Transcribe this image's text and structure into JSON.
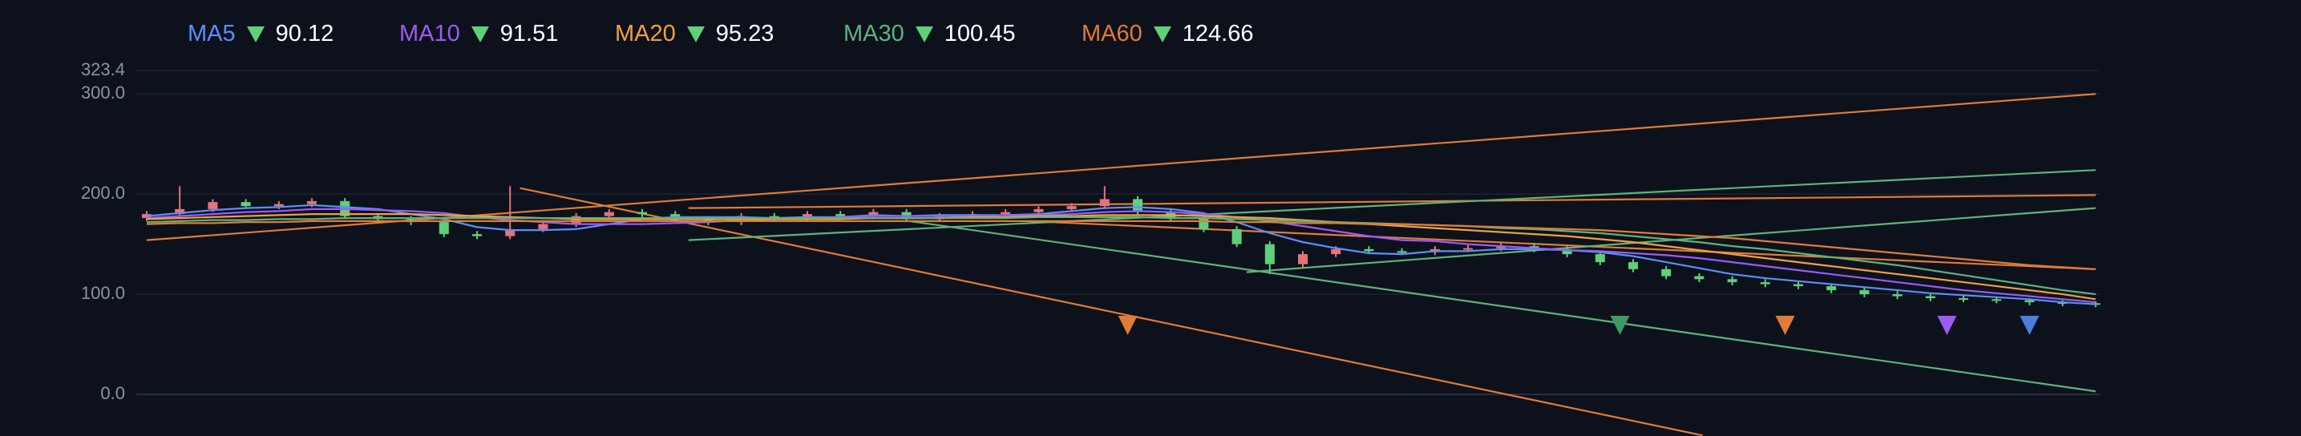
{
  "chart_data": {
    "type": "candlestick",
    "ylim": [
      0,
      323.4
    ],
    "yticks": [
      {
        "value": 0,
        "label": "0.0"
      },
      {
        "value": 100,
        "label": "100.0"
      },
      {
        "value": 200,
        "label": "200.0"
      },
      {
        "value": 300,
        "label": "300.0"
      },
      {
        "value": 323.4,
        "label": "323.4"
      }
    ],
    "grid": true,
    "up_color": "#e8727a",
    "down_color": "#5fd07a",
    "open": [
      176,
      180,
      185,
      192,
      188,
      190,
      193,
      178,
      175,
      172,
      160,
      158,
      165,
      170,
      178,
      182,
      180,
      175,
      172,
      178,
      176,
      180,
      178,
      182,
      175,
      178,
      180,
      182,
      185,
      188,
      195,
      182,
      176,
      165,
      150,
      130,
      140,
      145,
      143,
      142,
      145,
      146,
      148,
      145,
      140,
      132,
      125,
      118,
      115,
      112,
      110,
      108,
      104,
      100,
      98,
      96,
      95,
      94,
      92,
      91
    ],
    "high": [
      183,
      208,
      195,
      195,
      193,
      196,
      196,
      181,
      178,
      175,
      163,
      208,
      173,
      181,
      185,
      185,
      183,
      178,
      181,
      181,
      183,
      183,
      185,
      185,
      181,
      183,
      185,
      188,
      191,
      208,
      198,
      185,
      179,
      168,
      153,
      143,
      148,
      148,
      146,
      148,
      149,
      151,
      151,
      148,
      143,
      135,
      128,
      121,
      118,
      115,
      113,
      111,
      107,
      103,
      101,
      99,
      97,
      96,
      94,
      93
    ],
    "low": [
      173,
      177,
      182,
      185,
      185,
      187,
      175,
      172,
      169,
      157,
      155,
      155,
      162,
      167,
      175,
      177,
      172,
      169,
      169,
      173,
      173,
      175,
      175,
      172,
      172,
      175,
      177,
      179,
      182,
      185,
      179,
      173,
      162,
      147,
      120,
      127,
      137,
      140,
      139,
      139,
      142,
      143,
      142,
      137,
      129,
      122,
      115,
      112,
      109,
      107,
      105,
      101,
      97,
      95,
      93,
      92,
      91,
      89,
      88,
      87
    ],
    "close": [
      180,
      185,
      192,
      188,
      190,
      193,
      178,
      175,
      172,
      160,
      158,
      165,
      170,
      178,
      182,
      180,
      175,
      172,
      178,
      176,
      180,
      178,
      182,
      175,
      178,
      180,
      182,
      185,
      188,
      195,
      182,
      176,
      165,
      150,
      130,
      140,
      145,
      143,
      142,
      145,
      146,
      148,
      145,
      140,
      132,
      125,
      118,
      115,
      112,
      110,
      108,
      104,
      100,
      98,
      96,
      95,
      94,
      92,
      91,
      90
    ],
    "series": [
      {
        "name": "MA5",
        "color": "#5b8ff9",
        "current": "90.12",
        "values": [
          178,
          181,
          184,
          186,
          187,
          189,
          187,
          185,
          180,
          175,
          167,
          164,
          164,
          165,
          170,
          175,
          177,
          177,
          177,
          176,
          177,
          177,
          179,
          178,
          179,
          179,
          179,
          180,
          183,
          186,
          187,
          185,
          181,
          172,
          161,
          152,
          146,
          141,
          140,
          143,
          143,
          145,
          145,
          144,
          142,
          138,
          132,
          126,
          120,
          116,
          113,
          110,
          107,
          104,
          101,
          99,
          97,
          95,
          92,
          90
        ]
      },
      {
        "name": "MA10",
        "color": "#9b5cf5",
        "current": "91.51",
        "values": [
          176,
          178,
          180,
          182,
          183,
          185,
          185,
          184,
          183,
          181,
          177,
          174,
          172,
          170,
          170,
          170,
          171,
          172,
          174,
          175,
          176,
          177,
          178,
          178,
          178,
          178,
          179,
          179,
          180,
          182,
          183,
          182,
          180,
          177,
          173,
          168,
          163,
          158,
          154,
          153,
          150,
          148,
          146,
          144,
          143,
          141,
          139,
          136,
          132,
          128,
          124,
          120,
          116,
          112,
          108,
          104,
          101,
          98,
          95,
          92
        ]
      },
      {
        "name": "MA20",
        "color": "#f0a040",
        "current": "95.23",
        "values": [
          175,
          176,
          177,
          178,
          179,
          180,
          180,
          180,
          180,
          179,
          178,
          177,
          176,
          175,
          175,
          175,
          175,
          175,
          175,
          175,
          175,
          175,
          176,
          176,
          176,
          177,
          177,
          178,
          178,
          179,
          179,
          179,
          178,
          177,
          176,
          174,
          172,
          170,
          168,
          166,
          164,
          162,
          160,
          158,
          155,
          152,
          148,
          144,
          140,
          136,
          132,
          128,
          124,
          120,
          116,
          112,
          108,
          104,
          100,
          95
        ]
      },
      {
        "name": "MA30",
        "color": "#5fb37a",
        "current": "100.45",
        "values": [
          172,
          173,
          174,
          174,
          175,
          175,
          176,
          176,
          176,
          176,
          176,
          176,
          176,
          176,
          176,
          176,
          176,
          176,
          176,
          176,
          176,
          176,
          176,
          176,
          176,
          176,
          176,
          177,
          177,
          177,
          177,
          176,
          176,
          175,
          174,
          173,
          172,
          171,
          170,
          169,
          168,
          166,
          165,
          163,
          161,
          158,
          155,
          152,
          148,
          145,
          141,
          137,
          133,
          129,
          124,
          119,
          114,
          109,
          104,
          100
        ]
      },
      {
        "name": "MA60",
        "color": "#e07b39",
        "current": "124.66",
        "values": [
          170,
          171,
          171,
          172,
          172,
          173,
          173,
          173,
          173,
          173,
          173,
          173,
          173,
          173,
          173,
          173,
          173,
          173,
          173,
          173,
          173,
          173,
          173,
          173,
          173,
          173,
          173,
          173,
          173,
          173,
          173,
          173,
          173,
          172,
          172,
          171,
          171,
          170,
          170,
          169,
          168,
          167,
          166,
          165,
          164,
          162,
          160,
          158,
          156,
          153,
          150,
          147,
          144,
          141,
          138,
          135,
          132,
          129,
          127,
          125
        ]
      }
    ],
    "trend_lines": [
      {
        "color": "#e07b39",
        "x": [
          0,
          59
        ],
        "values": [
          154,
          300
        ]
      },
      {
        "color": "#e07b39",
        "x": [
          11.3,
          47.1
        ],
        "values": [
          206,
          -41
        ]
      },
      {
        "color": "#e07b39",
        "x": [
          16.4,
          59
        ],
        "values": [
          186,
          199
        ]
      },
      {
        "color": "#e07b39",
        "x": [
          26.7,
          59
        ],
        "values": [
          173,
          125
        ]
      },
      {
        "color": "#5fb37a",
        "x": [
          16.4,
          59
        ],
        "values": [
          154,
          224
        ]
      },
      {
        "color": "#5fb37a",
        "x": [
          33.3,
          59
        ],
        "values": [
          122,
          186
        ]
      },
      {
        "color": "#5fb37a",
        "x": [
          23.1,
          59
        ],
        "values": [
          173,
          3
        ]
      }
    ],
    "signals": [
      {
        "x": 29.7,
        "color": "#e07b39"
      },
      {
        "x": 44.6,
        "color": "#3f9a63"
      },
      {
        "x": 49.6,
        "color": "#e07b39"
      },
      {
        "x": 54.5,
        "color": "#9b5cf5"
      },
      {
        "x": 57.0,
        "color": "#4a7fe0"
      }
    ]
  }
}
